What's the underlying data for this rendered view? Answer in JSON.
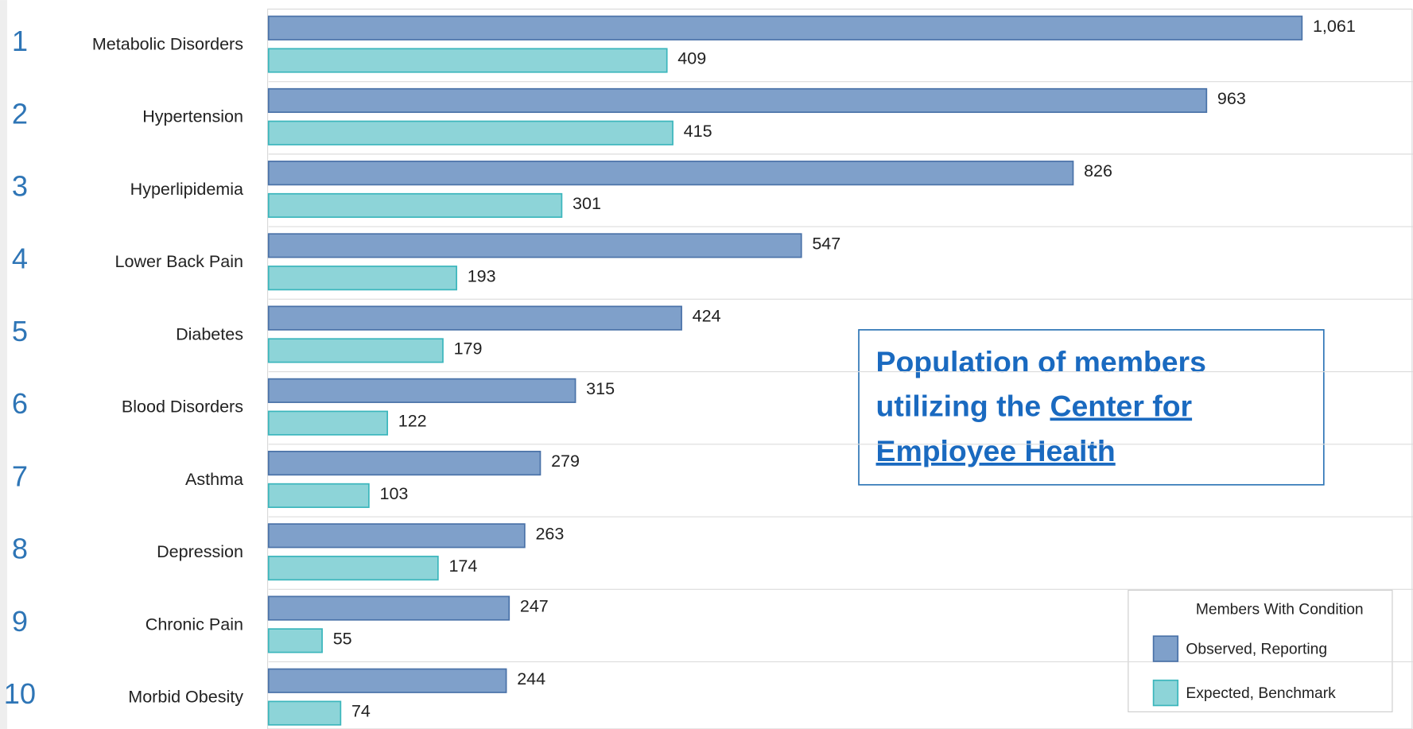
{
  "chart_data": {
    "type": "barh",
    "row_numbers": [
      1,
      2,
      3,
      4,
      5,
      6,
      7,
      8,
      9,
      10
    ],
    "categories": [
      "Metabolic Disorders",
      "Hypertension",
      "Hyperlipidemia",
      "Lower Back Pain",
      "Diabetes",
      "Blood Disorders",
      "Asthma",
      "Depression",
      "Chronic Pain",
      "Morbid Obesity"
    ],
    "series": [
      {
        "name": "Observed, Reporting",
        "color": "#7fa0ca",
        "stroke": "#4a72a8",
        "values": [
          1061,
          963,
          826,
          547,
          424,
          315,
          279,
          263,
          247,
          244
        ],
        "value_labels": [
          "1,061",
          "963",
          "826",
          "547",
          "424",
          "315",
          "279",
          "263",
          "247",
          "244"
        ]
      },
      {
        "name": "Expected, Benchmark",
        "color": "#8dd4d8",
        "stroke": "#3bb6bc",
        "values": [
          409,
          415,
          301,
          193,
          179,
          122,
          103,
          174,
          55,
          74
        ]
      }
    ],
    "xlim": [
      0,
      1175
    ],
    "legend_title": "Members With Condition",
    "legend": "lower right",
    "annotation": {
      "text": [
        "Population of members",
        "utilizing the"
      ],
      "link": [
        "Center for",
        "Employee Health"
      ]
    }
  }
}
